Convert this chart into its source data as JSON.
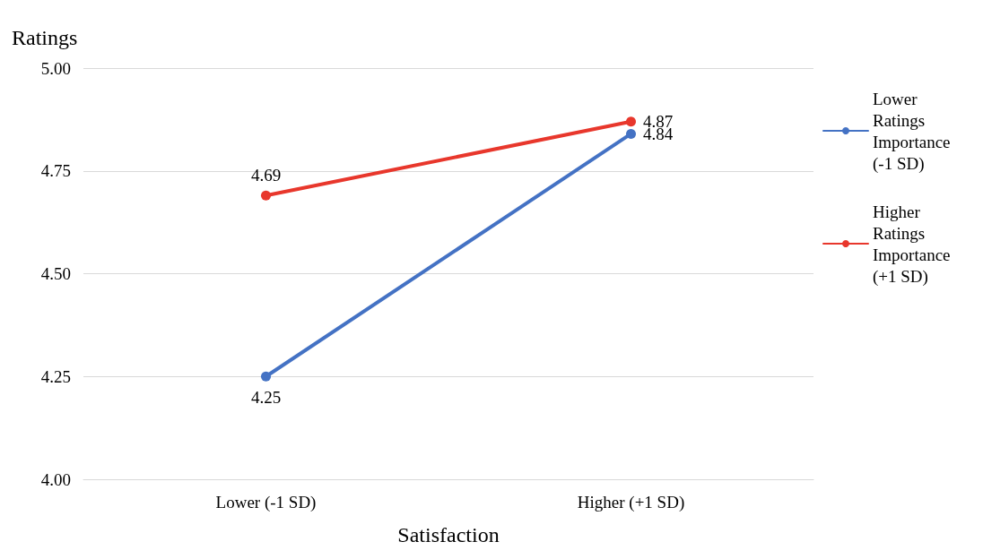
{
  "chart_data": {
    "type": "line",
    "ylabel": "Ratings",
    "xlabel": "Satisfaction",
    "categories": [
      "Lower (-1 SD)",
      "Higher (+1 SD)"
    ],
    "series": [
      {
        "name": "Lower Ratings Importance (-1 SD)",
        "color": "#4472c4",
        "values": [
          4.25,
          4.84
        ]
      },
      {
        "name": "Higher Ratings Importance (+1 SD)",
        "color": "#e8372c",
        "values": [
          4.69,
          4.87
        ]
      }
    ],
    "ylim": [
      4.0,
      5.0
    ],
    "yticks": [
      {
        "value": 4.0,
        "label": "4.00"
      },
      {
        "value": 4.25,
        "label": "4.25"
      },
      {
        "value": 4.5,
        "label": "4.50"
      },
      {
        "value": 4.75,
        "label": "4.75"
      },
      {
        "value": 5.0,
        "label": "5.00"
      }
    ],
    "grid": "y",
    "legend": "right",
    "marker": "circle",
    "line_style": "solid",
    "data_labels": true
  }
}
